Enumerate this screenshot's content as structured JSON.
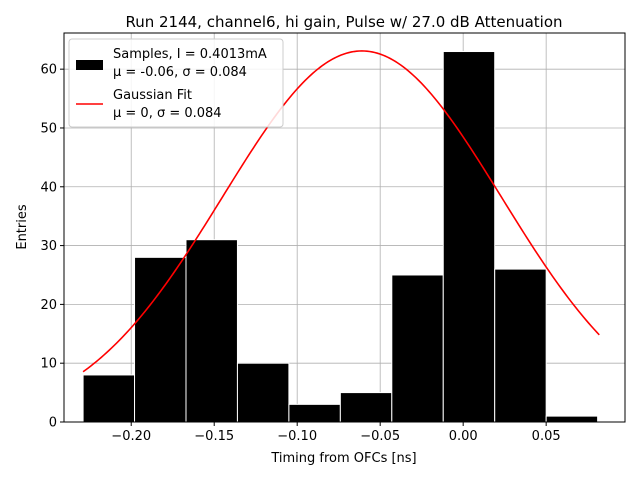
{
  "chart_data": {
    "type": "bar",
    "title": "Run 2144, channel6, hi gain, Pulse w/ 27.0 dB Attenuation",
    "xlabel": "Timing from OFCs [ns]",
    "ylabel": "Entries",
    "xlim": [
      -0.2405,
      0.0975
    ],
    "ylim": [
      0,
      66.15
    ],
    "grid": true,
    "legend_position": "top-left",
    "x_ticks": [
      -0.2,
      -0.15,
      -0.1,
      -0.05,
      0.0,
      0.05
    ],
    "x_tick_labels": [
      "−0.20",
      "−0.15",
      "−0.10",
      "−0.05",
      "0.00",
      "0.05"
    ],
    "y_ticks": [
      0,
      10,
      20,
      30,
      40,
      50,
      60
    ],
    "y_tick_labels": [
      "0",
      "10",
      "20",
      "30",
      "40",
      "50",
      "60"
    ],
    "histogram": {
      "name": "Samples, I = 0.4013mA",
      "stats": "μ = -0.06, σ = 0.084",
      "color": "#000000",
      "edgecolor": "#ffffff",
      "bin_edges": [
        -0.229,
        -0.198,
        -0.167,
        -0.136,
        -0.105,
        -0.074,
        -0.043,
        -0.012,
        0.019,
        0.05,
        0.081
      ],
      "values": [
        8,
        28,
        31,
        10,
        3,
        5,
        25,
        63,
        26,
        1
      ]
    },
    "fit": {
      "name": "Gaussian Fit",
      "stats": "μ = 0, σ = 0.084",
      "color": "#ff0000",
      "x_range": [
        -0.229,
        0.082
      ],
      "mean": -0.061,
      "sigma": 0.084,
      "amplitude": 63.1
    }
  }
}
